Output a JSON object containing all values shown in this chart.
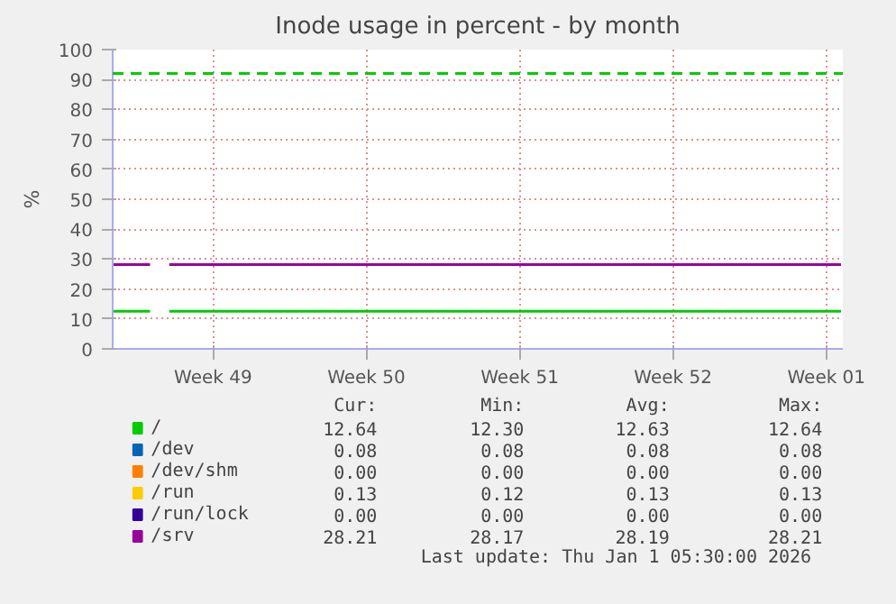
{
  "chart_data": {
    "type": "line",
    "title": "Inode usage in percent - by month",
    "ylabel": "%",
    "xlim": [
      "2025-11-29T22:00",
      "2026-01-02T06:00"
    ],
    "xticks": [
      {
        "value": "2025-12-04T12:00",
        "label": "Week 49"
      },
      {
        "value": "2025-12-11T12:00",
        "label": "Week 50"
      },
      {
        "value": "2025-12-18T12:00",
        "label": "Week 51"
      },
      {
        "value": "2025-12-25T12:00",
        "label": "Week 52"
      },
      {
        "value": "2026-01-01T12:00",
        "label": "Week 01"
      }
    ],
    "ylim": [
      0,
      100
    ],
    "yticks": [
      0,
      10,
      20,
      30,
      40,
      50,
      60,
      70,
      80,
      90,
      100
    ],
    "grid": true,
    "legend": "bottom",
    "marker": "none",
    "line_style": "solid",
    "series": [
      {
        "name": "/",
        "color": "#00cc00",
        "x": [
          "2025-11-29T22:00",
          "2025-12-01T15:00",
          "2025-12-01T18:00",
          "2025-12-02T12:00",
          "2026-01-02T04:00"
        ],
        "values": [
          12.6,
          12.6,
          null,
          12.6,
          12.6
        ]
      },
      {
        "name": "/dev",
        "color": "#0066b3"
      },
      {
        "name": "/dev/shm",
        "color": "#ff8000"
      },
      {
        "name": "/run",
        "color": "#ffcc00"
      },
      {
        "name": "/run/lock",
        "color": "#330099"
      },
      {
        "name": "/srv",
        "color": "#990099",
        "x": [
          "2025-11-29T22:00",
          "2025-12-01T15:00",
          "2025-12-01T18:00",
          "2025-12-02T12:00",
          "2026-01-02T04:00"
        ],
        "values": [
          28.2,
          28.2,
          null,
          28.2,
          28.2
        ]
      }
    ],
    "ref_lines": [
      {
        "axis": "y",
        "value": 92,
        "color": "#00cc00",
        "line_style": "dashed"
      }
    ],
    "annotations": [
      "Cur:",
      "Min:",
      "Avg:",
      "Max:",
      "12.64",
      "12.30",
      "12.63",
      "12.64",
      "0.08",
      "0.08",
      "0.08",
      "0.08",
      "0.00",
      "0.00",
      "0.00",
      "0.00",
      "0.13",
      "0.12",
      "0.13",
      "0.13",
      "0.00",
      "0.00",
      "0.00",
      "0.00",
      "28.21",
      "28.17",
      "28.19",
      "28.21",
      "Last update: Thu Jan  1 05:30:00 2026"
    ]
  }
}
